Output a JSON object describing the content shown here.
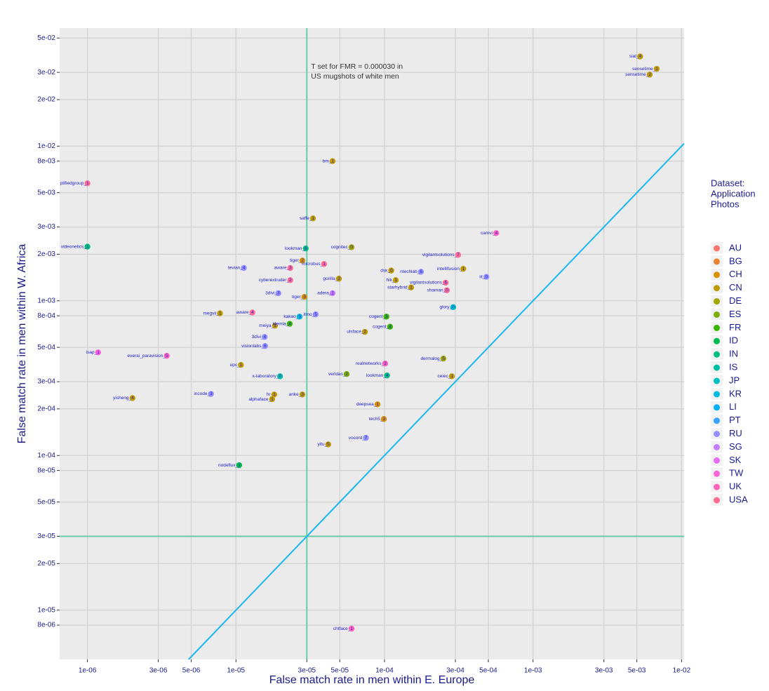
{
  "chart_data": {
    "type": "scatter",
    "x_label": "False match rate in men within E. Europe",
    "y_label": "False match rate in men within W. Africa",
    "legend_title": [
      "Dataset:",
      "Application",
      "Photos"
    ],
    "annotation": [
      "T set for FMR = 0.000030 in",
      "US mugshots of white men"
    ],
    "threshold": 3e-05,
    "threshold_color": "#66cdaa",
    "diagonal": true,
    "diagonal_color": "#1ab8f0",
    "log_x": true,
    "log_y": true,
    "grid": true,
    "legend_position": "right",
    "xlim": [
      6.5e-07,
      0.0104
    ],
    "ylim": [
      4.8e-06,
      0.058
    ],
    "xticks": [
      {
        "value": 1e-06,
        "label": "1e-06"
      },
      {
        "value": 3e-06,
        "label": "3e-06"
      },
      {
        "value": 5e-06,
        "label": "5e-06"
      },
      {
        "value": 1e-05,
        "label": "1e-05"
      },
      {
        "value": 3e-05,
        "label": "3e-05"
      },
      {
        "value": 5e-05,
        "label": "5e-05"
      },
      {
        "value": 0.0001,
        "label": "1e-04"
      },
      {
        "value": 0.0003,
        "label": "3e-04"
      },
      {
        "value": 0.0005,
        "label": "5e-04"
      },
      {
        "value": 0.001,
        "label": "1e-03"
      },
      {
        "value": 0.003,
        "label": "3e-03"
      },
      {
        "value": 0.005,
        "label": "5e-03"
      },
      {
        "value": 0.01,
        "label": "1e-02"
      }
    ],
    "yticks": [
      {
        "value": 0.05,
        "label": "5e-02"
      },
      {
        "value": 0.03,
        "label": "3e-02"
      },
      {
        "value": 0.02,
        "label": "2e-02"
      },
      {
        "value": 0.01,
        "label": "1e-02"
      },
      {
        "value": 0.008,
        "label": "8e-03"
      },
      {
        "value": 0.005,
        "label": "5e-03"
      },
      {
        "value": 0.003,
        "label": "3e-03"
      },
      {
        "value": 0.002,
        "label": "2e-03"
      },
      {
        "value": 0.001,
        "label": "1e-03"
      },
      {
        "value": 0.0008,
        "label": "8e-04"
      },
      {
        "value": 0.0005,
        "label": "5e-04"
      },
      {
        "value": 0.0003,
        "label": "3e-04"
      },
      {
        "value": 0.0002,
        "label": "2e-04"
      },
      {
        "value": 0.0001,
        "label": "1e-04"
      },
      {
        "value": 8e-05,
        "label": "8e-05"
      },
      {
        "value": 5e-05,
        "label": "5e-05"
      },
      {
        "value": 3e-05,
        "label": "3e-05"
      },
      {
        "value": 2e-05,
        "label": "2e-05"
      },
      {
        "value": 1e-05,
        "label": "1e-05"
      },
      {
        "value": 8e-06,
        "label": "8e-06"
      }
    ],
    "series": [
      {
        "name": "AU",
        "color": "#f8766d",
        "x": [],
        "y": [],
        "labels": []
      },
      {
        "name": "BG",
        "color": "#ea8331",
        "x": [],
        "y": [],
        "labels": []
      },
      {
        "name": "CH",
        "color": "#d89000",
        "x": [
          2.8e-05,
          2.89e-05,
          8.97e-05,
          9.9e-05
        ],
        "y": [
          0.00182,
          0.00106,
          0.000214,
          0.000172
        ],
        "labels": [
          "tiger_2",
          "tiger_3",
          "deepsea_1",
          "tech5_3"
        ]
      },
      {
        "name": "CN",
        "color": "#c09b00",
        "x": [
          0.00526,
          0.0068,
          0.0061,
          4.47e-05,
          3.3e-05,
          0.000111,
          0.000339,
          4.93e-05,
          0.000119,
          0.000151,
          7.8e-06,
          1.83e-05,
          7.38e-05,
          1.08e-05,
          0.000284,
          1.81e-05,
          2.8e-05,
          1.75e-05,
          2.01e-06,
          4.18e-05
        ],
        "y": [
          0.038,
          0.0316,
          0.029,
          0.008,
          0.00341,
          0.00157,
          0.00161,
          0.00139,
          0.00136,
          0.00122,
          0.00083,
          0.00069,
          0.00063,
          0.000385,
          0.000325,
          0.000248,
          0.000248,
          0.000231,
          0.000235,
          0.000118
        ],
        "labels": [
          "siat_4",
          "sensetime_1",
          "sensetime_2",
          "bm_1",
          "saffe_1",
          "dsk_0",
          "intellifusion_1",
          "gorilla_2",
          "hik_1",
          "starhybrid_1",
          "megvii_1",
          "meiya_1",
          "ulsface_2",
          "upc_1",
          "ceiec_1",
          "hr_1",
          "anke_3",
          "alphaface_1",
          "yisheng_4",
          "yitu_5"
        ]
      },
      {
        "name": "DE",
        "color": "#a3a500",
        "x": [
          6e-05,
          0.000249
        ],
        "y": [
          0.00222,
          0.000423
        ],
        "labels": [
          "cognitec_0",
          "dermalog_5"
        ]
      },
      {
        "name": "ES",
        "color": "#7cae00",
        "x": [
          5.56e-05
        ],
        "y": [
          0.000336
        ],
        "labels": [
          "veridas_2"
        ]
      },
      {
        "name": "FR",
        "color": "#39b600",
        "x": [
          0.000103,
          0.000109,
          2.3e-05
        ],
        "y": [
          0.00079,
          0.00068,
          0.00071
        ],
        "labels": [
          "cogent_3",
          "cogent_4",
          "idemia_4"
        ]
      },
      {
        "name": "ID",
        "color": "#00bb4e",
        "x": [
          1.05e-05
        ],
        "y": [
          8.65e-05
        ],
        "labels": [
          "nodeflux_1"
        ]
      },
      {
        "name": "IN",
        "color": "#00bf7d",
        "x": [
          1e-06,
          2.95e-05,
          0.000104
        ],
        "y": [
          0.00224,
          0.00218,
          0.000329
        ],
        "labels": [
          "videonetics_1",
          "lookman_6",
          "lookman_4"
        ]
      },
      {
        "name": "IS",
        "color": "#00c1a3",
        "x": [
          1.98e-05
        ],
        "y": [
          0.000325
        ],
        "labels": [
          "x-laboratory_0"
        ]
      },
      {
        "name": "JP",
        "color": "#00bfc4",
        "x": [
          0.00029
        ],
        "y": [
          0.00091
        ],
        "labels": [
          "glory_0"
        ]
      },
      {
        "name": "KR",
        "color": "#00bae0",
        "x": [
          2.68e-05
        ],
        "y": [
          0.00079
        ],
        "labels": [
          "kakao_3"
        ]
      },
      {
        "name": "LI",
        "color": "#00b0f6",
        "x": [],
        "y": [],
        "labels": []
      },
      {
        "name": "PT",
        "color": "#35a2ff",
        "x": [],
        "y": [],
        "labels": []
      },
      {
        "name": "RU",
        "color": "#9590ff",
        "x": [
          1.13e-05,
          0.000176,
          0.000485,
          1.93e-05,
          1.56e-05,
          1.57e-05,
          6.79e-06,
          7.5e-05,
          3.44e-05
        ],
        "y": [
          0.00163,
          0.00154,
          0.00143,
          0.00112,
          0.000584,
          0.00051,
          0.00025,
          0.00013,
          0.000817
        ],
        "labels": [
          "tevian_4",
          "ntechlab_6",
          "iit_0",
          "3divi_3",
          "3divi_4",
          "visionlabs_6",
          "incode_3",
          "vocord_7",
          "itmo_5"
        ]
      },
      {
        "name": "SG",
        "color": "#c77cff",
        "x": [
          4.47e-05
        ],
        "y": [
          0.00112
        ],
        "labels": [
          "adera_1"
        ]
      },
      {
        "name": "SK",
        "color": "#e76bf3",
        "x": [],
        "y": [],
        "labels": []
      },
      {
        "name": "TW",
        "color": "#fa62db",
        "x": [
          1.18e-06
        ],
        "y": [
          0.000464
        ],
        "labels": [
          "isap_1"
        ]
      },
      {
        "name": "UK",
        "color": "#ff62bc",
        "x": [
          0.000565,
          3.42e-06,
          0.000101,
          6e-05
        ],
        "y": [
          0.00274,
          0.000441,
          0.000393,
          7.59e-06
        ],
        "labels": [
          "camvi_4",
          "everai_paravision_5",
          "realnetworks_2",
          "chtface_1"
        ]
      },
      {
        "name": "USA",
        "color": "#ff6c91",
        "x": [
          1e-06,
          0.000313,
          3.92e-05,
          2.32e-05,
          2.32e-05,
          0.000258,
          0.000263,
          1.29e-05
        ],
        "y": [
          0.00575,
          0.00198,
          0.00173,
          0.00163,
          0.00136,
          0.00131,
          0.00117,
          0.00084
        ],
        "labels": [
          "plifiedgroup_1",
          "vigilantsolutions_7",
          "microbus_1",
          "aware_3",
          "cyberextruder_2",
          "vigilantsolutions_6",
          "shaman_0",
          "aware_4"
        ]
      }
    ]
  }
}
